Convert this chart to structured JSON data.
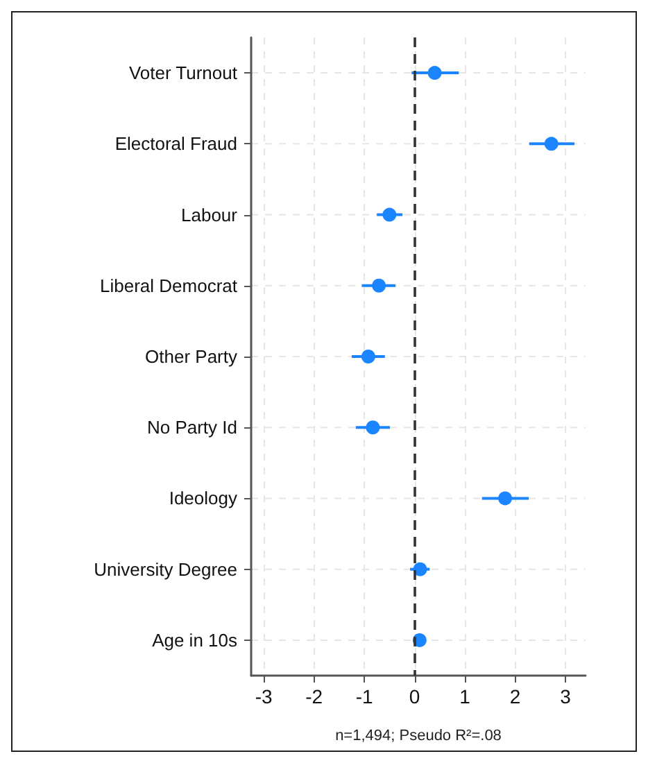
{
  "chart_data": {
    "type": "scatter",
    "orientation": "horizontal",
    "xlabel": "n=1,494; Pseudo R²=.08",
    "categories": [
      "Voter Turnout",
      "Electoral Fraud",
      "Labour",
      "Liberal Democrat",
      "Other Party",
      "No Party Id",
      "Ideology",
      "University Degree",
      "Age in 10s"
    ],
    "series": [
      {
        "color": "#1a85ff",
        "values": [
          0.4,
          2.72,
          -0.5,
          -0.71,
          -0.92,
          -0.83,
          1.8,
          0.11,
          0.1
        ],
        "errors": [
          [
            -0.06,
            0.88
          ],
          [
            2.28,
            3.18
          ],
          [
            -0.75,
            -0.24
          ],
          [
            -1.05,
            -0.38
          ],
          [
            -1.25,
            -0.59
          ],
          [
            -1.17,
            -0.49
          ],
          [
            1.34,
            2.27
          ],
          [
            -0.09,
            0.3
          ],
          [
            0.06,
            0.14
          ]
        ]
      }
    ],
    "xlim": [
      -3.25,
      3.4
    ],
    "xticks": [
      -3,
      -2,
      -1,
      0,
      1,
      2,
      3
    ],
    "grid": true,
    "marker": "circle",
    "ref_lines": [
      {
        "axis": "x",
        "value": 0,
        "color": "#333333",
        "line_style": "dashed"
      }
    ]
  }
}
